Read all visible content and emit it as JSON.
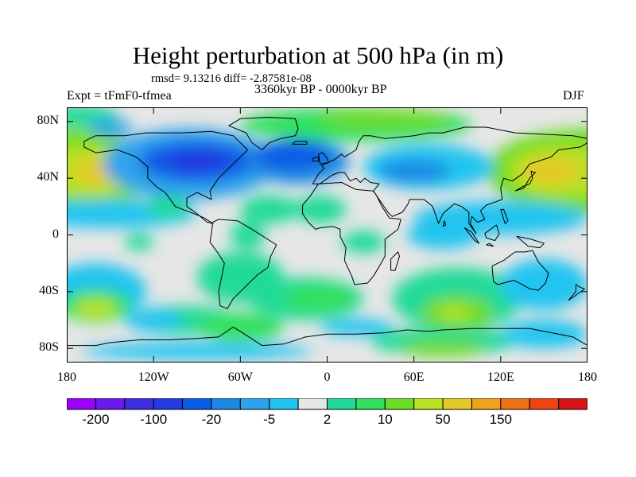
{
  "title": "Height perturbation at 500 hPa (in m)",
  "subtitle_stats": "rmsd= 9.13216 diff= -2.87581e-08",
  "period_label": "3360kyr BP - 0000kyr BP",
  "experiment_label": "Expt = tFmF0-tfmea",
  "season_label": "DJF",
  "map": {
    "projection": "cylindrical-equidistant",
    "lon_range": [
      -180,
      180
    ],
    "lat_range": [
      -90,
      90
    ],
    "land_outline_color": "#000000",
    "missing_color": "#e6e6e6",
    "x_ticks": [
      {
        "value": -180,
        "label": "180"
      },
      {
        "value": -120,
        "label": "120W"
      },
      {
        "value": -60,
        "label": "60W"
      },
      {
        "value": 0,
        "label": "0"
      },
      {
        "value": 60,
        "label": "60E"
      },
      {
        "value": 120,
        "label": "120E"
      },
      {
        "value": 180,
        "label": "180"
      }
    ],
    "y_ticks": [
      {
        "value": 80,
        "label": "80N"
      },
      {
        "value": 40,
        "label": "40N"
      },
      {
        "value": 0,
        "label": "0"
      },
      {
        "value": -40,
        "label": "40S"
      },
      {
        "value": -80,
        "label": "80S"
      }
    ],
    "features": [
      {
        "lon": -155,
        "lat": 45,
        "level": 8
      },
      {
        "lon": 150,
        "lat": 45,
        "level": 8
      },
      {
        "lon": -90,
        "lat": 53,
        "level": 2
      },
      {
        "lon": -25,
        "lat": 55,
        "level": 2
      },
      {
        "lon": 40,
        "lat": 78,
        "level": 7
      },
      {
        "lon": 60,
        "lat": 45,
        "level": 3
      },
      {
        "lon": -130,
        "lat": 5,
        "level": 4
      },
      {
        "lon": 75,
        "lat": 5,
        "level": 4
      },
      {
        "lon": -40,
        "lat": 15,
        "level": 6
      },
      {
        "lon": 5,
        "lat": 10,
        "level": 6
      },
      {
        "lon": 90,
        "lat": -55,
        "level": 8
      },
      {
        "lon": -160,
        "lat": -50,
        "level": 7
      },
      {
        "lon": 90,
        "lat": -80,
        "level": 6
      },
      {
        "lon": 0,
        "lat": -45,
        "level": 4
      }
    ]
  },
  "colorbar": {
    "colors": [
      "#9c00ff",
      "#6a19ee",
      "#3c2ee0",
      "#213be0",
      "#0b5ce6",
      "#1d88e4",
      "#2ea3ec",
      "#20c4f0",
      "#e6e6e6",
      "#21da98",
      "#30e05e",
      "#6ddc26",
      "#b9e126",
      "#e4c926",
      "#f0a21d",
      "#ee7217",
      "#ef4312",
      "#d91218"
    ],
    "labels": [
      "-200",
      "-100",
      "-20",
      "-5",
      "2",
      "10",
      "50",
      "150"
    ],
    "label_after_box": [
      1,
      3,
      5,
      7,
      9,
      11,
      13,
      15
    ]
  }
}
